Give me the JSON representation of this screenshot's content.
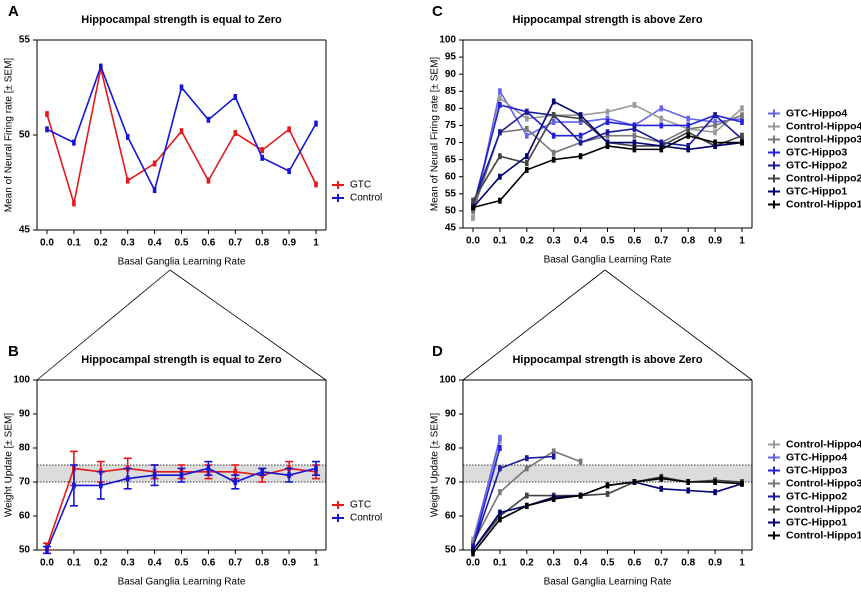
{
  "chart_data": [
    {
      "type": "line",
      "label": "A",
      "title": "Hippocampal strength is equal to Zero",
      "x_label": "Basal Ganglia Learning Rate",
      "y_label": "Mean of Neural Firing rate [± SEM]",
      "categories": [
        "0.0",
        "0.1",
        "0.2",
        "0.3",
        "0.4",
        "0.5",
        "0.6",
        "0.7",
        "0.8",
        "0.9",
        "1"
      ],
      "ylim": [
        45,
        55
      ],
      "yticks": [
        45,
        50,
        55
      ],
      "legend": "lower right",
      "series": [
        {
          "name": "GTC",
          "color": "#e31a1c",
          "values": [
            51.1,
            46.4,
            53.5,
            47.6,
            48.5,
            50.2,
            47.6,
            50.1,
            49.2,
            50.3,
            47.4
          ]
        },
        {
          "name": "Control",
          "color": "#1515d6",
          "values": [
            50.3,
            49.6,
            53.6,
            49.9,
            47.1,
            52.5,
            50.8,
            52.0,
            48.8,
            48.1,
            50.6
          ]
        }
      ]
    },
    {
      "type": "line",
      "label": "B",
      "title": "Hippocampal strength is equal to Zero",
      "x_label": "Basal Ganglia Learning Rate",
      "y_label": "Weight Update [± SEM]",
      "categories": [
        "0.0",
        "0.1",
        "0.2",
        "0.3",
        "0.4",
        "0.5",
        "0.6",
        "0.7",
        "0.8",
        "0.9",
        "1"
      ],
      "ylim": [
        50,
        100
      ],
      "yticks": [
        50,
        60,
        70,
        80,
        90,
        100
      ],
      "reference_band": [
        70,
        75
      ],
      "legend": "lower right",
      "series": [
        {
          "name": "GTC",
          "color": "#e31a1c",
          "values": [
            51,
            74,
            73,
            74,
            73,
            73,
            73,
            73,
            72,
            74,
            73
          ],
          "errors": [
            1,
            5,
            3,
            3,
            2,
            2,
            2,
            2,
            2,
            2,
            2
          ]
        },
        {
          "name": "Control",
          "color": "#1515d6",
          "values": [
            50,
            69,
            69,
            71,
            72,
            72,
            74,
            70,
            73,
            72,
            74
          ],
          "errors": [
            1,
            6,
            4,
            3,
            3,
            2,
            2,
            2,
            1,
            2,
            2
          ]
        }
      ]
    },
    {
      "type": "line",
      "label": "C",
      "title": "Hippocampal strength is above Zero",
      "x_label": "Basal Ganglia Learning Rate",
      "y_label": "Mean of Neural Firing rate [± SEM]",
      "categories": [
        "0.0",
        "0.1",
        "0.2",
        "0.3",
        "0.4",
        "0.5",
        "0.6",
        "0.7",
        "0.8",
        "0.9",
        "1"
      ],
      "ylim": [
        45,
        100
      ],
      "yticks": [
        45,
        50,
        55,
        60,
        65,
        70,
        75,
        80,
        85,
        90,
        95,
        100
      ],
      "legend": "right",
      "series": [
        {
          "name": "GTC-Hippo4",
          "color": "#6464ee",
          "values": [
            48,
            85,
            72,
            76,
            76,
            77,
            75,
            80,
            77,
            76,
            77
          ]
        },
        {
          "name": "Control-Hippo4",
          "color": "#9a9a9a",
          "values": [
            48,
            83,
            77,
            78,
            78,
            79,
            81,
            77,
            74,
            73,
            80
          ]
        },
        {
          "name": "Control-Hippo3",
          "color": "#777777",
          "values": [
            50,
            73,
            74,
            67,
            70,
            72,
            72,
            70,
            74,
            75,
            78
          ]
        },
        {
          "name": "GTC-Hippo3",
          "color": "#2222dd",
          "values": [
            51,
            81,
            79,
            72,
            72,
            76,
            75,
            75,
            75,
            78,
            76
          ]
        },
        {
          "name": "GTC-Hippo2",
          "color": "#1a1a9c",
          "values": [
            52,
            73,
            79,
            78,
            70,
            73,
            74,
            70,
            69,
            78,
            71
          ]
        },
        {
          "name": "Control-Hippo2",
          "color": "#444444",
          "values": [
            53,
            66,
            64,
            78,
            77,
            70,
            69,
            69,
            73,
            69,
            72
          ]
        },
        {
          "name": "GTC-Hippo1",
          "color": "#000070",
          "values": [
            51,
            60,
            66,
            82,
            78,
            70,
            70,
            69,
            68,
            69,
            70
          ]
        },
        {
          "name": "Control-Hippo1",
          "color": "#000000",
          "values": [
            51,
            53,
            62,
            65,
            66,
            69,
            68,
            68,
            72,
            70,
            70
          ]
        }
      ]
    },
    {
      "type": "line",
      "label": "D",
      "title": "Hippocampal strength is above Zero",
      "x_label": "Basal Ganglia Learning Rate",
      "y_label": "Weight Update [± SEM]",
      "categories": [
        "0.0",
        "0.1",
        "0.2",
        "0.3",
        "0.4",
        "0.5",
        "0.6",
        "0.7",
        "0.8",
        "0.9",
        "1"
      ],
      "ylim": [
        50,
        100
      ],
      "yticks": [
        50,
        60,
        70,
        80,
        90,
        100
      ],
      "reference_band": [
        70,
        75
      ],
      "legend": "right",
      "series": [
        {
          "name": "Control-Hippo4",
          "color": "#9a9a9a",
          "values": [
            53,
            82,
            null,
            null,
            null,
            null,
            null,
            null,
            null,
            null,
            null
          ]
        },
        {
          "name": "GTC-Hippo4",
          "color": "#6464ee",
          "values": [
            52,
            83,
            null,
            null,
            null,
            null,
            null,
            null,
            null,
            null,
            null
          ]
        },
        {
          "name": "GTC-Hippo3",
          "color": "#2222dd",
          "values": [
            51,
            80,
            null,
            null,
            null,
            null,
            null,
            null,
            null,
            null,
            null
          ]
        },
        {
          "name": "Control-Hippo3",
          "color": "#777777",
          "values": [
            52,
            67,
            74,
            79,
            76,
            null,
            null,
            null,
            null,
            null,
            null
          ]
        },
        {
          "name": "GTC-Hippo2",
          "color": "#1a1a9c",
          "values": [
            51,
            74,
            77,
            77.5,
            null,
            null,
            null,
            null,
            null,
            null,
            null
          ]
        },
        {
          "name": "Control-Hippo2",
          "color": "#444444",
          "values": [
            50,
            60,
            66,
            66,
            66,
            66.5,
            70,
            71.5,
            70,
            70.5,
            70
          ]
        },
        {
          "name": "GTC-Hippo1",
          "color": "#000070",
          "values": [
            50,
            61,
            63,
            65.5,
            66,
            69,
            70,
            68,
            67.5,
            67,
            69.5
          ]
        },
        {
          "name": "Control-Hippo1",
          "color": "#000000",
          "values": [
            49,
            59,
            63,
            65,
            66,
            69,
            70,
            71,
            70,
            70,
            69.5
          ]
        }
      ]
    }
  ]
}
